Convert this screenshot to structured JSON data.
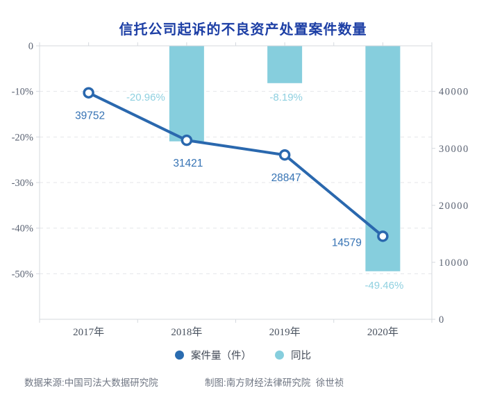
{
  "title": "信托公司起诉的不良资产处置案件数量",
  "chart_data": {
    "type": "bar+line combo",
    "categories": [
      "2017年",
      "2018年",
      "2019年",
      "2020年"
    ],
    "series": [
      {
        "name": "案件量（件）",
        "type": "line",
        "axis": "right",
        "values": [
          39752,
          31421,
          28847,
          14579
        ],
        "labels": [
          "39752",
          "31421",
          "28847",
          "14579"
        ]
      },
      {
        "name": "同比",
        "type": "bar",
        "axis": "left",
        "values": [
          null,
          -20.96,
          -8.19,
          -49.46
        ],
        "labels": [
          "",
          "-20.96%",
          "-8.19%",
          "-49.46%"
        ]
      }
    ],
    "left_axis": {
      "ticks": [
        "0",
        "-10%",
        "-20%",
        "-30%",
        "-40%",
        "-50%"
      ],
      "tick_values": [
        0,
        -10,
        -20,
        -30,
        -40,
        -50
      ],
      "min": -60,
      "max": 0
    },
    "right_axis": {
      "ticks": [
        "0",
        "10000",
        "20000",
        "30000",
        "40000"
      ],
      "tick_values": [
        0,
        10000,
        20000,
        30000,
        40000
      ],
      "min": 0,
      "max": 48000
    },
    "grid": "dashed horizontal lines at left-axis ticks",
    "legend_position": "bottom"
  },
  "legend": {
    "items": [
      {
        "label": "案件量（件）",
        "color": "#2a6cb0"
      },
      {
        "label": "同比",
        "color": "#86cedd"
      }
    ]
  },
  "footer": {
    "source": "数据来源:中国司法大数据研究院",
    "credit": "制图:南方财经法律研究院  徐世祯"
  },
  "colors": {
    "title": "#1d3fa5",
    "line": "#2a68ae",
    "marker_fill": "#ffffff",
    "line_label": "#3673b4",
    "bar": "#86cedd",
    "bar_label": "#8fd0e0",
    "axis": "#d4d8de",
    "grid": "#e4e6e9",
    "tick_text": "#5b6373",
    "x_text": "#49525f"
  }
}
